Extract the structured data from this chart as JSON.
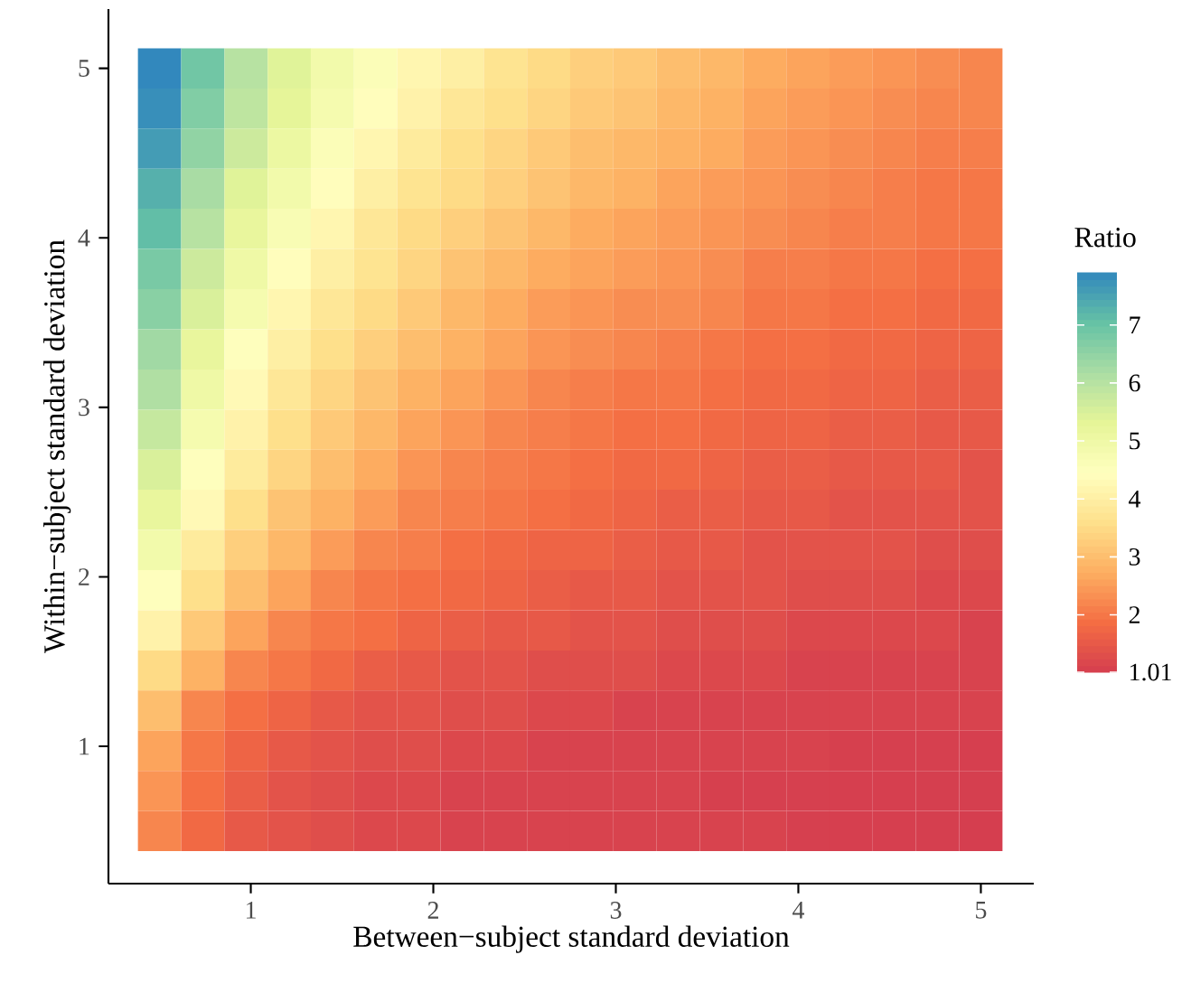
{
  "chart_data": {
    "type": "heatmap",
    "xlabel": "Between−subject standard deviation",
    "ylabel": "Within−subject standard deviation",
    "clabel": "Ratio",
    "x": [
      0.5,
      0.737,
      0.974,
      1.211,
      1.447,
      1.684,
      1.921,
      2.158,
      2.395,
      2.632,
      2.868,
      3.105,
      3.342,
      3.579,
      3.816,
      4.053,
      4.289,
      4.526,
      4.763,
      5.0
    ],
    "y": [
      5.0,
      4.763,
      4.526,
      4.289,
      4.053,
      3.816,
      3.579,
      3.342,
      3.105,
      2.868,
      2.632,
      2.395,
      2.158,
      1.921,
      1.684,
      1.447,
      1.211,
      0.974,
      0.737,
      0.5
    ],
    "xlim": [
      0.22,
      5.29
    ],
    "ylim": [
      0.19,
      5.35
    ],
    "xticks": [
      1,
      2,
      3,
      4,
      5
    ],
    "yticks": [
      1,
      2,
      3,
      4,
      5
    ],
    "clim": [
      1.01,
      7.9
    ],
    "cticks": [
      1.01,
      2,
      3,
      4,
      5,
      6,
      7
    ],
    "cells": [
      [
        7.9,
        6.9,
        6.0,
        5.4,
        4.9,
        4.6,
        4.2,
        4.0,
        3.7,
        3.5,
        3.3,
        3.2,
        3.0,
        2.9,
        2.7,
        2.6,
        2.5,
        2.4,
        2.3,
        2.2
      ],
      [
        7.8,
        6.7,
        5.9,
        5.3,
        4.8,
        4.4,
        4.1,
        3.8,
        3.6,
        3.4,
        3.2,
        3.1,
        2.9,
        2.8,
        2.6,
        2.5,
        2.4,
        2.3,
        2.2,
        2.2
      ],
      [
        7.6,
        6.5,
        5.7,
        5.1,
        4.6,
        4.2,
        3.9,
        3.6,
        3.4,
        3.2,
        3.0,
        2.9,
        2.8,
        2.7,
        2.5,
        2.4,
        2.3,
        2.2,
        2.1,
        2.1
      ],
      [
        7.3,
        6.2,
        5.4,
        4.9,
        4.4,
        4.0,
        3.7,
        3.5,
        3.3,
        3.1,
        2.9,
        2.8,
        2.6,
        2.5,
        2.4,
        2.3,
        2.2,
        2.1,
        2.0,
        2.0
      ],
      [
        7.1,
        6.0,
        5.2,
        4.7,
        4.2,
        3.8,
        3.5,
        3.3,
        3.1,
        2.9,
        2.7,
        2.6,
        2.5,
        2.4,
        2.3,
        2.2,
        2.1,
        2.1,
        2.0,
        2.0
      ],
      [
        6.8,
        5.7,
        5.0,
        4.4,
        4.0,
        3.7,
        3.4,
        3.1,
        2.9,
        2.7,
        2.6,
        2.5,
        2.4,
        2.3,
        2.1,
        2.1,
        2.0,
        2.0,
        1.9,
        1.9
      ],
      [
        6.6,
        5.5,
        4.8,
        4.2,
        3.8,
        3.5,
        3.2,
        2.9,
        2.7,
        2.5,
        2.4,
        2.3,
        2.3,
        2.2,
        2.0,
        2.0,
        1.9,
        1.9,
        1.8,
        1.8
      ],
      [
        6.3,
        5.2,
        4.5,
        4.0,
        3.6,
        3.3,
        3.0,
        2.8,
        2.6,
        2.4,
        2.3,
        2.2,
        2.1,
        2.0,
        1.9,
        1.9,
        1.8,
        1.8,
        1.7,
        1.7
      ],
      [
        6.1,
        5.0,
        4.3,
        3.8,
        3.4,
        3.1,
        2.8,
        2.6,
        2.4,
        2.2,
        2.1,
        2.0,
        2.0,
        1.9,
        1.8,
        1.8,
        1.7,
        1.7,
        1.6,
        1.6
      ],
      [
        5.8,
        4.8,
        4.1,
        3.6,
        3.2,
        2.9,
        2.6,
        2.4,
        2.2,
        2.1,
        2.0,
        1.9,
        1.9,
        1.8,
        1.7,
        1.7,
        1.6,
        1.6,
        1.5,
        1.5
      ],
      [
        5.5,
        4.5,
        3.9,
        3.4,
        3.0,
        2.7,
        2.4,
        2.2,
        2.1,
        2.0,
        1.9,
        1.8,
        1.8,
        1.7,
        1.6,
        1.6,
        1.5,
        1.5,
        1.5,
        1.4
      ],
      [
        5.2,
        4.3,
        3.6,
        3.1,
        2.8,
        2.5,
        2.2,
        2.1,
        2.0,
        1.9,
        1.8,
        1.7,
        1.6,
        1.6,
        1.5,
        1.5,
        1.4,
        1.4,
        1.4,
        1.4
      ],
      [
        4.9,
        3.9,
        3.3,
        2.9,
        2.5,
        2.2,
        2.1,
        1.9,
        1.8,
        1.7,
        1.7,
        1.6,
        1.5,
        1.5,
        1.4,
        1.4,
        1.4,
        1.4,
        1.3,
        1.3
      ],
      [
        4.5,
        3.6,
        3.0,
        2.6,
        2.2,
        2.0,
        1.9,
        1.8,
        1.7,
        1.6,
        1.5,
        1.5,
        1.4,
        1.4,
        1.4,
        1.3,
        1.3,
        1.3,
        1.2,
        1.2
      ],
      [
        4.1,
        3.2,
        2.6,
        2.2,
        2.0,
        1.9,
        1.7,
        1.6,
        1.5,
        1.5,
        1.4,
        1.4,
        1.3,
        1.3,
        1.3,
        1.2,
        1.2,
        1.2,
        1.2,
        1.1
      ],
      [
        3.5,
        2.8,
        2.2,
        2.0,
        1.8,
        1.6,
        1.5,
        1.4,
        1.4,
        1.3,
        1.3,
        1.3,
        1.2,
        1.2,
        1.2,
        1.1,
        1.1,
        1.1,
        1.1,
        1.1
      ],
      [
        3.0,
        2.2,
        1.9,
        1.7,
        1.5,
        1.4,
        1.4,
        1.3,
        1.3,
        1.2,
        1.2,
        1.1,
        1.1,
        1.1,
        1.1,
        1.1,
        1.1,
        1.1,
        1.1,
        1.1
      ],
      [
        2.6,
        2.0,
        1.7,
        1.5,
        1.4,
        1.3,
        1.3,
        1.2,
        1.2,
        1.1,
        1.1,
        1.1,
        1.1,
        1.1,
        1.1,
        1.1,
        1.05,
        1.04,
        1.04,
        1.03
      ],
      [
        2.4,
        1.9,
        1.6,
        1.4,
        1.3,
        1.2,
        1.2,
        1.1,
        1.1,
        1.1,
        1.1,
        1.1,
        1.1,
        1.05,
        1.04,
        1.04,
        1.03,
        1.03,
        1.02,
        1.02
      ],
      [
        2.2,
        1.8,
        1.5,
        1.4,
        1.3,
        1.2,
        1.2,
        1.1,
        1.1,
        1.1,
        1.1,
        1.1,
        1.1,
        1.1,
        1.1,
        1.04,
        1.03,
        1.03,
        1.02,
        1.01
      ]
    ]
  }
}
